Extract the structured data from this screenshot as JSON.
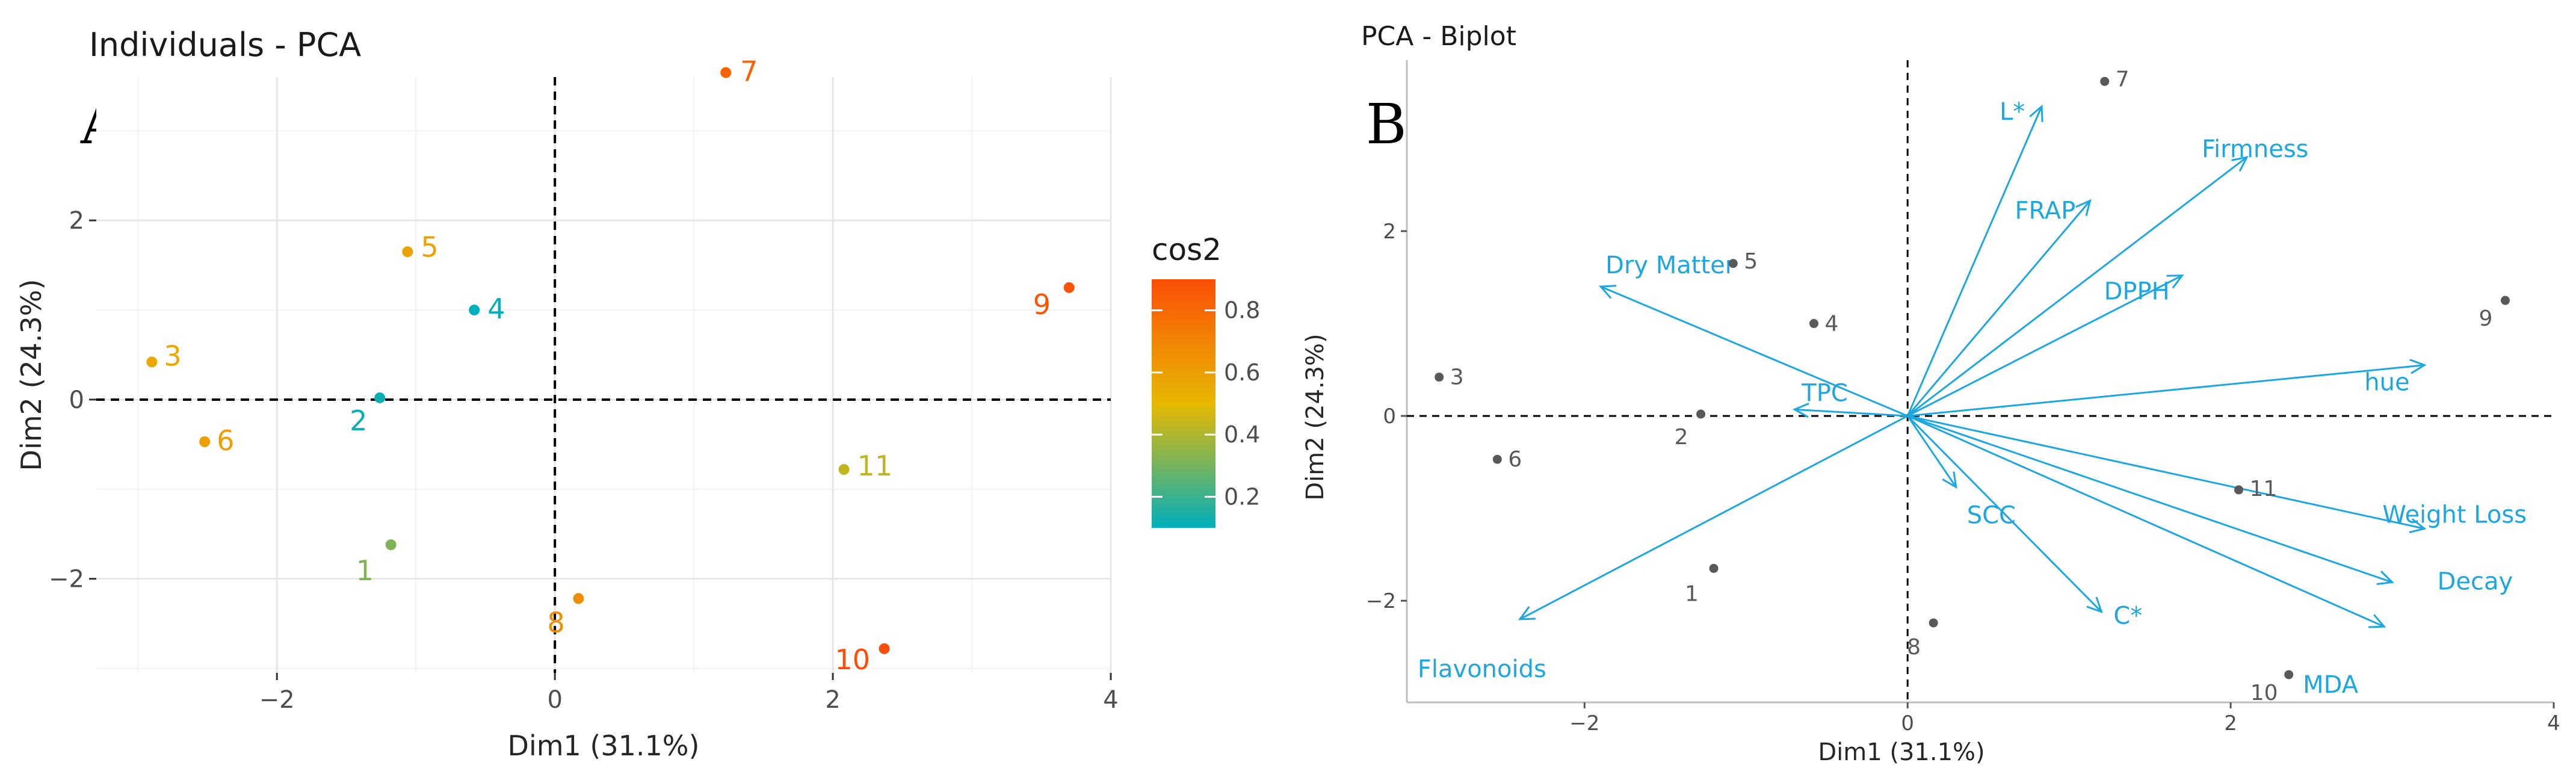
{
  "colors": {
    "cos2_low": "#00AFBB",
    "cos2_mid": "#E7B800",
    "cos2_high": "#FC4E07",
    "variable_arrow": "#1EA6E0",
    "individual_biplot": "#595959"
  },
  "chart_data": [
    {
      "type": "scatter",
      "panel_letter": "A",
      "title": "Individuals - PCA",
      "xlabel": "Dim1 (31.1%)",
      "ylabel": "Dim2 (24.3%)",
      "xlim": [
        -3.3,
        4.0
      ],
      "ylim": [
        -3.05,
        3.6
      ],
      "xticks": [
        -2,
        0,
        2,
        4
      ],
      "yticks": [
        -2,
        0,
        2
      ],
      "grid": true,
      "reference_lines": "dashed at x=0 and y=0",
      "legend": {
        "title": "cos2",
        "position": "right",
        "ticks": [
          0.2,
          0.4,
          0.6,
          0.8
        ],
        "range": [
          0.1,
          0.9
        ]
      },
      "points": [
        {
          "label": "1",
          "x": -1.18,
          "y": -1.62,
          "cos2": 0.32
        },
        {
          "label": "2",
          "x": -1.26,
          "y": 0.02,
          "cos2": 0.12
        },
        {
          "label": "3",
          "x": -2.9,
          "y": 0.42,
          "cos2": 0.56
        },
        {
          "label": "4",
          "x": -0.58,
          "y": 1.0,
          "cos2": 0.1
        },
        {
          "label": "5",
          "x": -1.06,
          "y": 1.65,
          "cos2": 0.58
        },
        {
          "label": "6",
          "x": -2.52,
          "y": -0.47,
          "cos2": 0.6
        },
        {
          "label": "7",
          "x": 1.23,
          "y": 3.65,
          "cos2": 0.82
        },
        {
          "label": "8",
          "x": 0.17,
          "y": -2.22,
          "cos2": 0.66
        },
        {
          "label": "9",
          "x": 3.7,
          "y": 1.25,
          "cos2": 0.88
        },
        {
          "label": "10",
          "x": 2.37,
          "y": -2.78,
          "cos2": 0.9
        },
        {
          "label": "11",
          "x": 2.08,
          "y": -0.78,
          "cos2": 0.43
        }
      ]
    },
    {
      "type": "scatter",
      "panel_letter": "B",
      "title": "PCA - Biplot",
      "xlabel": "Dim1 (31.1%)",
      "ylabel": "Dim2 (24.3%)",
      "xlim": [
        -3.1,
        4.0
      ],
      "ylim": [
        -3.1,
        3.85
      ],
      "xticks": [
        -2,
        0,
        2,
        4
      ],
      "yticks": [
        -2,
        0,
        2
      ],
      "grid": false,
      "reference_lines": "dashed at x=0 and y=0",
      "points": [
        {
          "label": "1",
          "x": -1.2,
          "y": -1.65
        },
        {
          "label": "2",
          "x": -1.28,
          "y": 0.02
        },
        {
          "label": "3",
          "x": -2.9,
          "y": 0.42
        },
        {
          "label": "4",
          "x": -0.58,
          "y": 1.0
        },
        {
          "label": "5",
          "x": -1.08,
          "y": 1.65
        },
        {
          "label": "6",
          "x": -2.54,
          "y": -0.47
        },
        {
          "label": "7",
          "x": 1.22,
          "y": 3.62
        },
        {
          "label": "8",
          "x": 0.16,
          "y": -2.24
        },
        {
          "label": "9",
          "x": 3.7,
          "y": 1.25
        },
        {
          "label": "10",
          "x": 2.36,
          "y": -2.8
        },
        {
          "label": "11",
          "x": 2.05,
          "y": -0.8
        }
      ],
      "variables": [
        {
          "name": "L*",
          "x": 0.83,
          "y": 3.35
        },
        {
          "name": "Firmness",
          "x": 2.1,
          "y": 2.8
        },
        {
          "name": "FRAP",
          "x": 1.13,
          "y": 2.33
        },
        {
          "name": "DPPH",
          "x": 1.7,
          "y": 1.52
        },
        {
          "name": "Dry Matter",
          "x": -1.9,
          "y": 1.4
        },
        {
          "name": "hue",
          "x": 3.2,
          "y": 0.55
        },
        {
          "name": "TPC",
          "x": -0.7,
          "y": 0.07
        },
        {
          "name": "SCC",
          "x": 0.3,
          "y": -0.77
        },
        {
          "name": "Weight Loss",
          "x": 3.2,
          "y": -1.22
        },
        {
          "name": "Decay",
          "x": 3.0,
          "y": -1.8
        },
        {
          "name": "MDA",
          "x": 2.95,
          "y": -2.28
        },
        {
          "name": "C*",
          "x": 1.2,
          "y": -2.12
        },
        {
          "name": "Flavonoids",
          "x": -2.4,
          "y": -2.2
        }
      ]
    }
  ]
}
